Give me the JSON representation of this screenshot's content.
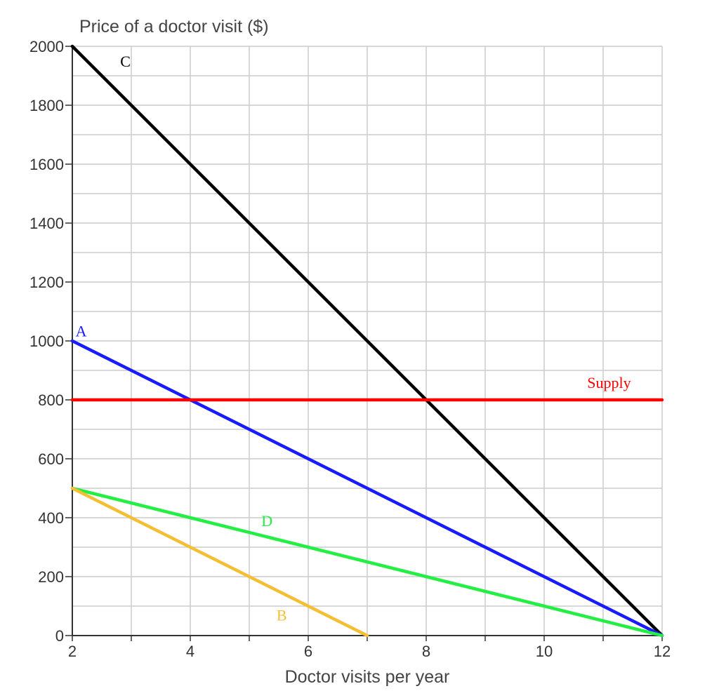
{
  "chart_data": {
    "type": "line",
    "ylabel": "Price of a doctor visit ($)",
    "xlabel": "Doctor visits per year",
    "xlim": [
      2,
      12
    ],
    "ylim": [
      0,
      2000
    ],
    "x_ticks": [
      "2",
      "4",
      "6",
      "8",
      "10",
      "12"
    ],
    "y_ticks": [
      "0",
      "200",
      "400",
      "600",
      "800",
      "1000",
      "1200",
      "1400",
      "1600",
      "1800",
      "2000"
    ],
    "grid": true,
    "series": [
      {
        "name": "C",
        "color": "#000000",
        "points": [
          [
            2,
            2000
          ],
          [
            12,
            0
          ]
        ]
      },
      {
        "name": "A",
        "color": "#1a1aff",
        "points": [
          [
            2,
            1000
          ],
          [
            12,
            0
          ]
        ]
      },
      {
        "name": "Supply",
        "color": "#ff0000",
        "points": [
          [
            2,
            800
          ],
          [
            12,
            800
          ]
        ]
      },
      {
        "name": "D",
        "color": "#22ee44",
        "points": [
          [
            2,
            500
          ],
          [
            12,
            0
          ]
        ]
      },
      {
        "name": "B",
        "color": "#f5bf35",
        "points": [
          [
            2,
            500
          ],
          [
            7,
            0
          ]
        ]
      }
    ]
  }
}
